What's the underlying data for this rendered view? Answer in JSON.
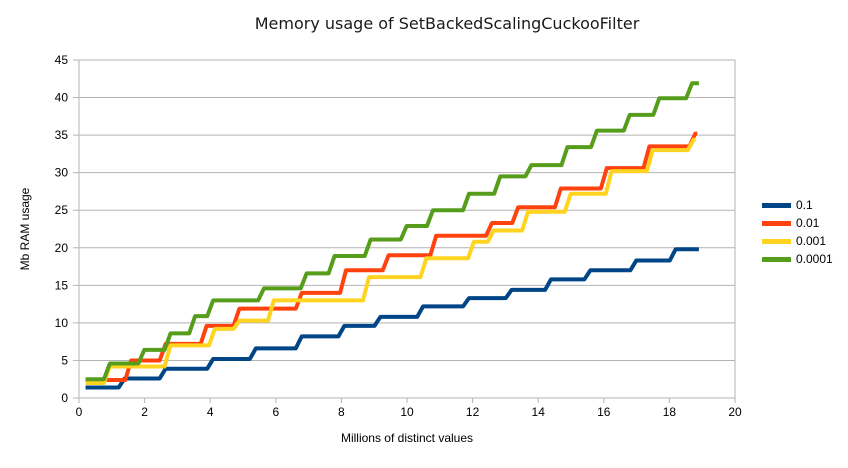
{
  "chart_data": {
    "type": "line",
    "step": true,
    "title": "Memory usage of SetBackedScalingCuckooFilter",
    "xlabel": "Millions of distinct values",
    "ylabel": "Mb RAM usage",
    "xlim": [
      0,
      20
    ],
    "ylim": [
      0,
      45
    ],
    "x_ticks": [
      0,
      2,
      4,
      6,
      8,
      10,
      12,
      14,
      16,
      18,
      20
    ],
    "y_ticks": [
      0,
      5,
      10,
      15,
      20,
      25,
      30,
      35,
      40,
      45
    ],
    "grid": "horizontal",
    "grid_color": "#b3b3b3",
    "legend_position": "right",
    "series": [
      {
        "name": "0.1",
        "color": "#004586",
        "x_end": 18.9,
        "steps": [
          [
            0.2,
            1.4
          ],
          [
            1.3,
            2.6
          ],
          [
            2.55,
            3.9
          ],
          [
            4.0,
            5.2
          ],
          [
            5.3,
            6.6
          ],
          [
            6.7,
            8.2
          ],
          [
            8.0,
            9.6
          ],
          [
            9.1,
            10.8
          ],
          [
            10.4,
            12.2
          ],
          [
            11.8,
            13.3
          ],
          [
            13.1,
            14.4
          ],
          [
            14.3,
            15.8
          ],
          [
            15.5,
            17.0
          ],
          [
            16.9,
            18.3
          ],
          [
            18.1,
            19.8
          ]
        ]
      },
      {
        "name": "0.01",
        "color": "#ff420e",
        "x_end": 18.85,
        "steps": [
          [
            0.2,
            2.4
          ],
          [
            1.5,
            5.0
          ],
          [
            2.55,
            7.2
          ],
          [
            3.8,
            9.6
          ],
          [
            4.8,
            11.9
          ],
          [
            6.7,
            14.0
          ],
          [
            8.05,
            17.0
          ],
          [
            9.35,
            19.0
          ],
          [
            10.8,
            21.6
          ],
          [
            12.5,
            23.3
          ],
          [
            13.3,
            25.4
          ],
          [
            14.6,
            27.9
          ],
          [
            16.0,
            30.6
          ],
          [
            17.3,
            33.5
          ],
          [
            18.7,
            35.2
          ]
        ]
      },
      {
        "name": "0.001",
        "color": "#ffd320",
        "x_end": 18.8,
        "steps": [
          [
            0.2,
            2.0
          ],
          [
            0.85,
            4.2
          ],
          [
            2.7,
            7.0
          ],
          [
            4.05,
            9.2
          ],
          [
            4.8,
            10.3
          ],
          [
            5.85,
            13.0
          ],
          [
            8.75,
            16.1
          ],
          [
            10.5,
            18.6
          ],
          [
            11.95,
            20.8
          ],
          [
            12.55,
            22.3
          ],
          [
            13.6,
            24.8
          ],
          [
            14.9,
            27.2
          ],
          [
            16.15,
            30.2
          ],
          [
            17.4,
            33.0
          ],
          [
            18.65,
            34.4
          ]
        ]
      },
      {
        "name": "0.0001",
        "color": "#579d1c",
        "x_end": 18.9,
        "steps": [
          [
            0.2,
            2.5
          ],
          [
            0.85,
            4.6
          ],
          [
            1.9,
            6.4
          ],
          [
            2.7,
            8.6
          ],
          [
            3.45,
            10.9
          ],
          [
            4.0,
            13.0
          ],
          [
            5.55,
            14.6
          ],
          [
            6.85,
            16.6
          ],
          [
            7.7,
            18.9
          ],
          [
            8.8,
            21.1
          ],
          [
            9.9,
            22.9
          ],
          [
            10.7,
            25.0
          ],
          [
            11.8,
            27.2
          ],
          [
            12.75,
            29.5
          ],
          [
            13.7,
            31.0
          ],
          [
            14.8,
            33.4
          ],
          [
            15.7,
            35.6
          ],
          [
            16.7,
            37.7
          ],
          [
            17.6,
            39.9
          ],
          [
            18.6,
            41.9
          ]
        ]
      }
    ]
  }
}
